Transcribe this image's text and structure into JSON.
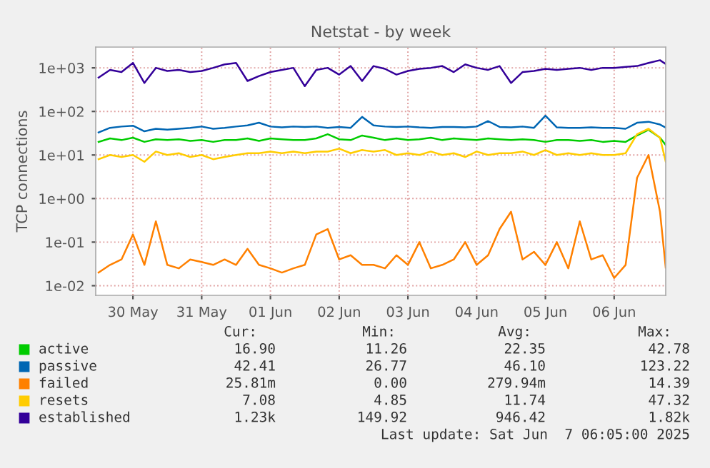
{
  "chart_data": {
    "type": "line",
    "title": "Netstat - by week",
    "ylabel": "TCP connections",
    "log": "y",
    "grid": true,
    "legend": "bottom left",
    "marker": "none",
    "line_style": "solid",
    "x": [
      "2025-05-30T00:00",
      "2025-05-30T04:00",
      "2025-05-30T08:00",
      "2025-05-30T12:00",
      "2025-05-30T16:00",
      "2025-05-30T20:00",
      "2025-05-31T00:00",
      "2025-05-31T04:00",
      "2025-05-31T08:00",
      "2025-05-31T12:00",
      "2025-05-31T16:00",
      "2025-05-31T20:00",
      "2025-06-01T00:00",
      "2025-06-01T04:00",
      "2025-06-01T08:00",
      "2025-06-01T12:00",
      "2025-06-01T16:00",
      "2025-06-01T20:00",
      "2025-06-02T00:00",
      "2025-06-02T04:00",
      "2025-06-02T08:00",
      "2025-06-02T12:00",
      "2025-06-02T16:00",
      "2025-06-02T20:00",
      "2025-06-03T00:00",
      "2025-06-03T04:00",
      "2025-06-03T08:00",
      "2025-06-03T12:00",
      "2025-06-03T16:00",
      "2025-06-03T20:00",
      "2025-06-04T00:00",
      "2025-06-04T04:00",
      "2025-06-04T08:00",
      "2025-06-04T12:00",
      "2025-06-04T16:00",
      "2025-06-04T20:00",
      "2025-06-05T00:00",
      "2025-06-05T04:00",
      "2025-06-05T08:00",
      "2025-06-05T12:00",
      "2025-06-05T16:00",
      "2025-06-05T20:00",
      "2025-06-06T00:00",
      "2025-06-06T04:00",
      "2025-06-06T08:00",
      "2025-06-06T12:00",
      "2025-06-06T16:00",
      "2025-06-06T20:00",
      "2025-06-07T00:00",
      "2025-06-07T04:00",
      "2025-06-07T06:00"
    ],
    "xlim": [
      "2025-05-29T23:00",
      "2025-06-07T06:00"
    ],
    "xticks": [
      {
        "value": "2025-05-30T12:00",
        "label": "30 May"
      },
      {
        "value": "2025-05-31T12:00",
        "label": "31 May"
      },
      {
        "value": "2025-06-01T12:00",
        "label": "01 Jun"
      },
      {
        "value": "2025-06-02T12:00",
        "label": "02 Jun"
      },
      {
        "value": "2025-06-03T12:00",
        "label": "03 Jun"
      },
      {
        "value": "2025-06-04T12:00",
        "label": "04 Jun"
      },
      {
        "value": "2025-06-05T12:00",
        "label": "05 Jun"
      },
      {
        "value": "2025-06-06T12:00",
        "label": "06 Jun"
      }
    ],
    "ylim": [
      0.006,
      3000
    ],
    "yticks": [
      {
        "value": 0.01,
        "label": "1e-02"
      },
      {
        "value": 0.1,
        "label": "1e-01"
      },
      {
        "value": 1,
        "label": "1e+00"
      },
      {
        "value": 10,
        "label": "1e+01"
      },
      {
        "value": 100,
        "label": "1e+02"
      },
      {
        "value": 1000,
        "label": "1e+03"
      }
    ],
    "series": [
      {
        "name": "active",
        "color": "#00cc00",
        "values": [
          20,
          24,
          22,
          25,
          20,
          23,
          22,
          23,
          21,
          22,
          20,
          22,
          22,
          24,
          21,
          24,
          23,
          22,
          22,
          24,
          30,
          23,
          22,
          28,
          25,
          22,
          24,
          22,
          23,
          25,
          22,
          24,
          23,
          22,
          24,
          23,
          22,
          23,
          22,
          20,
          22,
          22,
          21,
          22,
          20,
          21,
          20,
          28,
          38,
          25,
          16.9
        ]
      },
      {
        "name": "passive",
        "color": "#0066b3",
        "values": [
          33,
          42,
          45,
          47,
          35,
          40,
          38,
          40,
          42,
          45,
          40,
          42,
          45,
          48,
          55,
          45,
          43,
          45,
          44,
          45,
          42,
          44,
          42,
          75,
          48,
          45,
          44,
          45,
          43,
          42,
          44,
          44,
          43,
          45,
          60,
          44,
          43,
          45,
          42,
          80,
          43,
          42,
          42,
          43,
          42,
          42,
          40,
          55,
          58,
          50,
          42.41
        ]
      },
      {
        "name": "failed",
        "color": "#ff8000",
        "values": [
          0.02,
          0.03,
          0.04,
          0.15,
          0.03,
          0.3,
          0.03,
          0.025,
          0.04,
          0.035,
          0.03,
          0.04,
          0.03,
          0.07,
          0.03,
          0.025,
          0.02,
          0.025,
          0.03,
          0.15,
          0.2,
          0.04,
          0.05,
          0.03,
          0.03,
          0.025,
          0.05,
          0.03,
          0.1,
          0.025,
          0.03,
          0.04,
          0.1,
          0.03,
          0.05,
          0.2,
          0.5,
          0.04,
          0.06,
          0.03,
          0.1,
          0.025,
          0.3,
          0.04,
          0.05,
          0.015,
          0.03,
          3,
          10,
          0.5,
          0.026
        ]
      },
      {
        "name": "resets",
        "color": "#ffcc00",
        "values": [
          8,
          10,
          9,
          10,
          7,
          12,
          10,
          11,
          9,
          10,
          8,
          9,
          10,
          11,
          11,
          12,
          11,
          12,
          11,
          12,
          12,
          14,
          11,
          13,
          12,
          13,
          10,
          11,
          10,
          12,
          10,
          11,
          9,
          12,
          10,
          11,
          11,
          12,
          10,
          13,
          10,
          11,
          10,
          11,
          10,
          10,
          11,
          30,
          40,
          25,
          7.08
        ]
      },
      {
        "name": "established",
        "color": "#330099",
        "values": [
          600,
          900,
          800,
          1300,
          450,
          1000,
          850,
          900,
          800,
          850,
          1000,
          1200,
          1300,
          500,
          650,
          800,
          900,
          1000,
          380,
          900,
          1000,
          700,
          1100,
          500,
          1100,
          950,
          700,
          850,
          950,
          1000,
          1100,
          800,
          1200,
          1000,
          900,
          1100,
          450,
          800,
          850,
          950,
          900,
          950,
          1000,
          900,
          1000,
          1000,
          1050,
          1100,
          1300,
          1500,
          1230
        ]
      }
    ],
    "annotations": [
      "Cur:",
      "Min:",
      "Avg:",
      "Max:",
      "16.90",
      "11.26",
      "22.35",
      "42.78",
      "42.41",
      "26.77",
      "46.10",
      "123.22",
      "25.81m",
      "0.00",
      "279.94m",
      "14.39",
      "7.08",
      "4.85",
      "11.74",
      "47.32",
      "1.23k",
      "149.92",
      "946.42",
      "1.82k",
      "Last update: Sat Jun  7 06:05:00 2025"
    ]
  }
}
